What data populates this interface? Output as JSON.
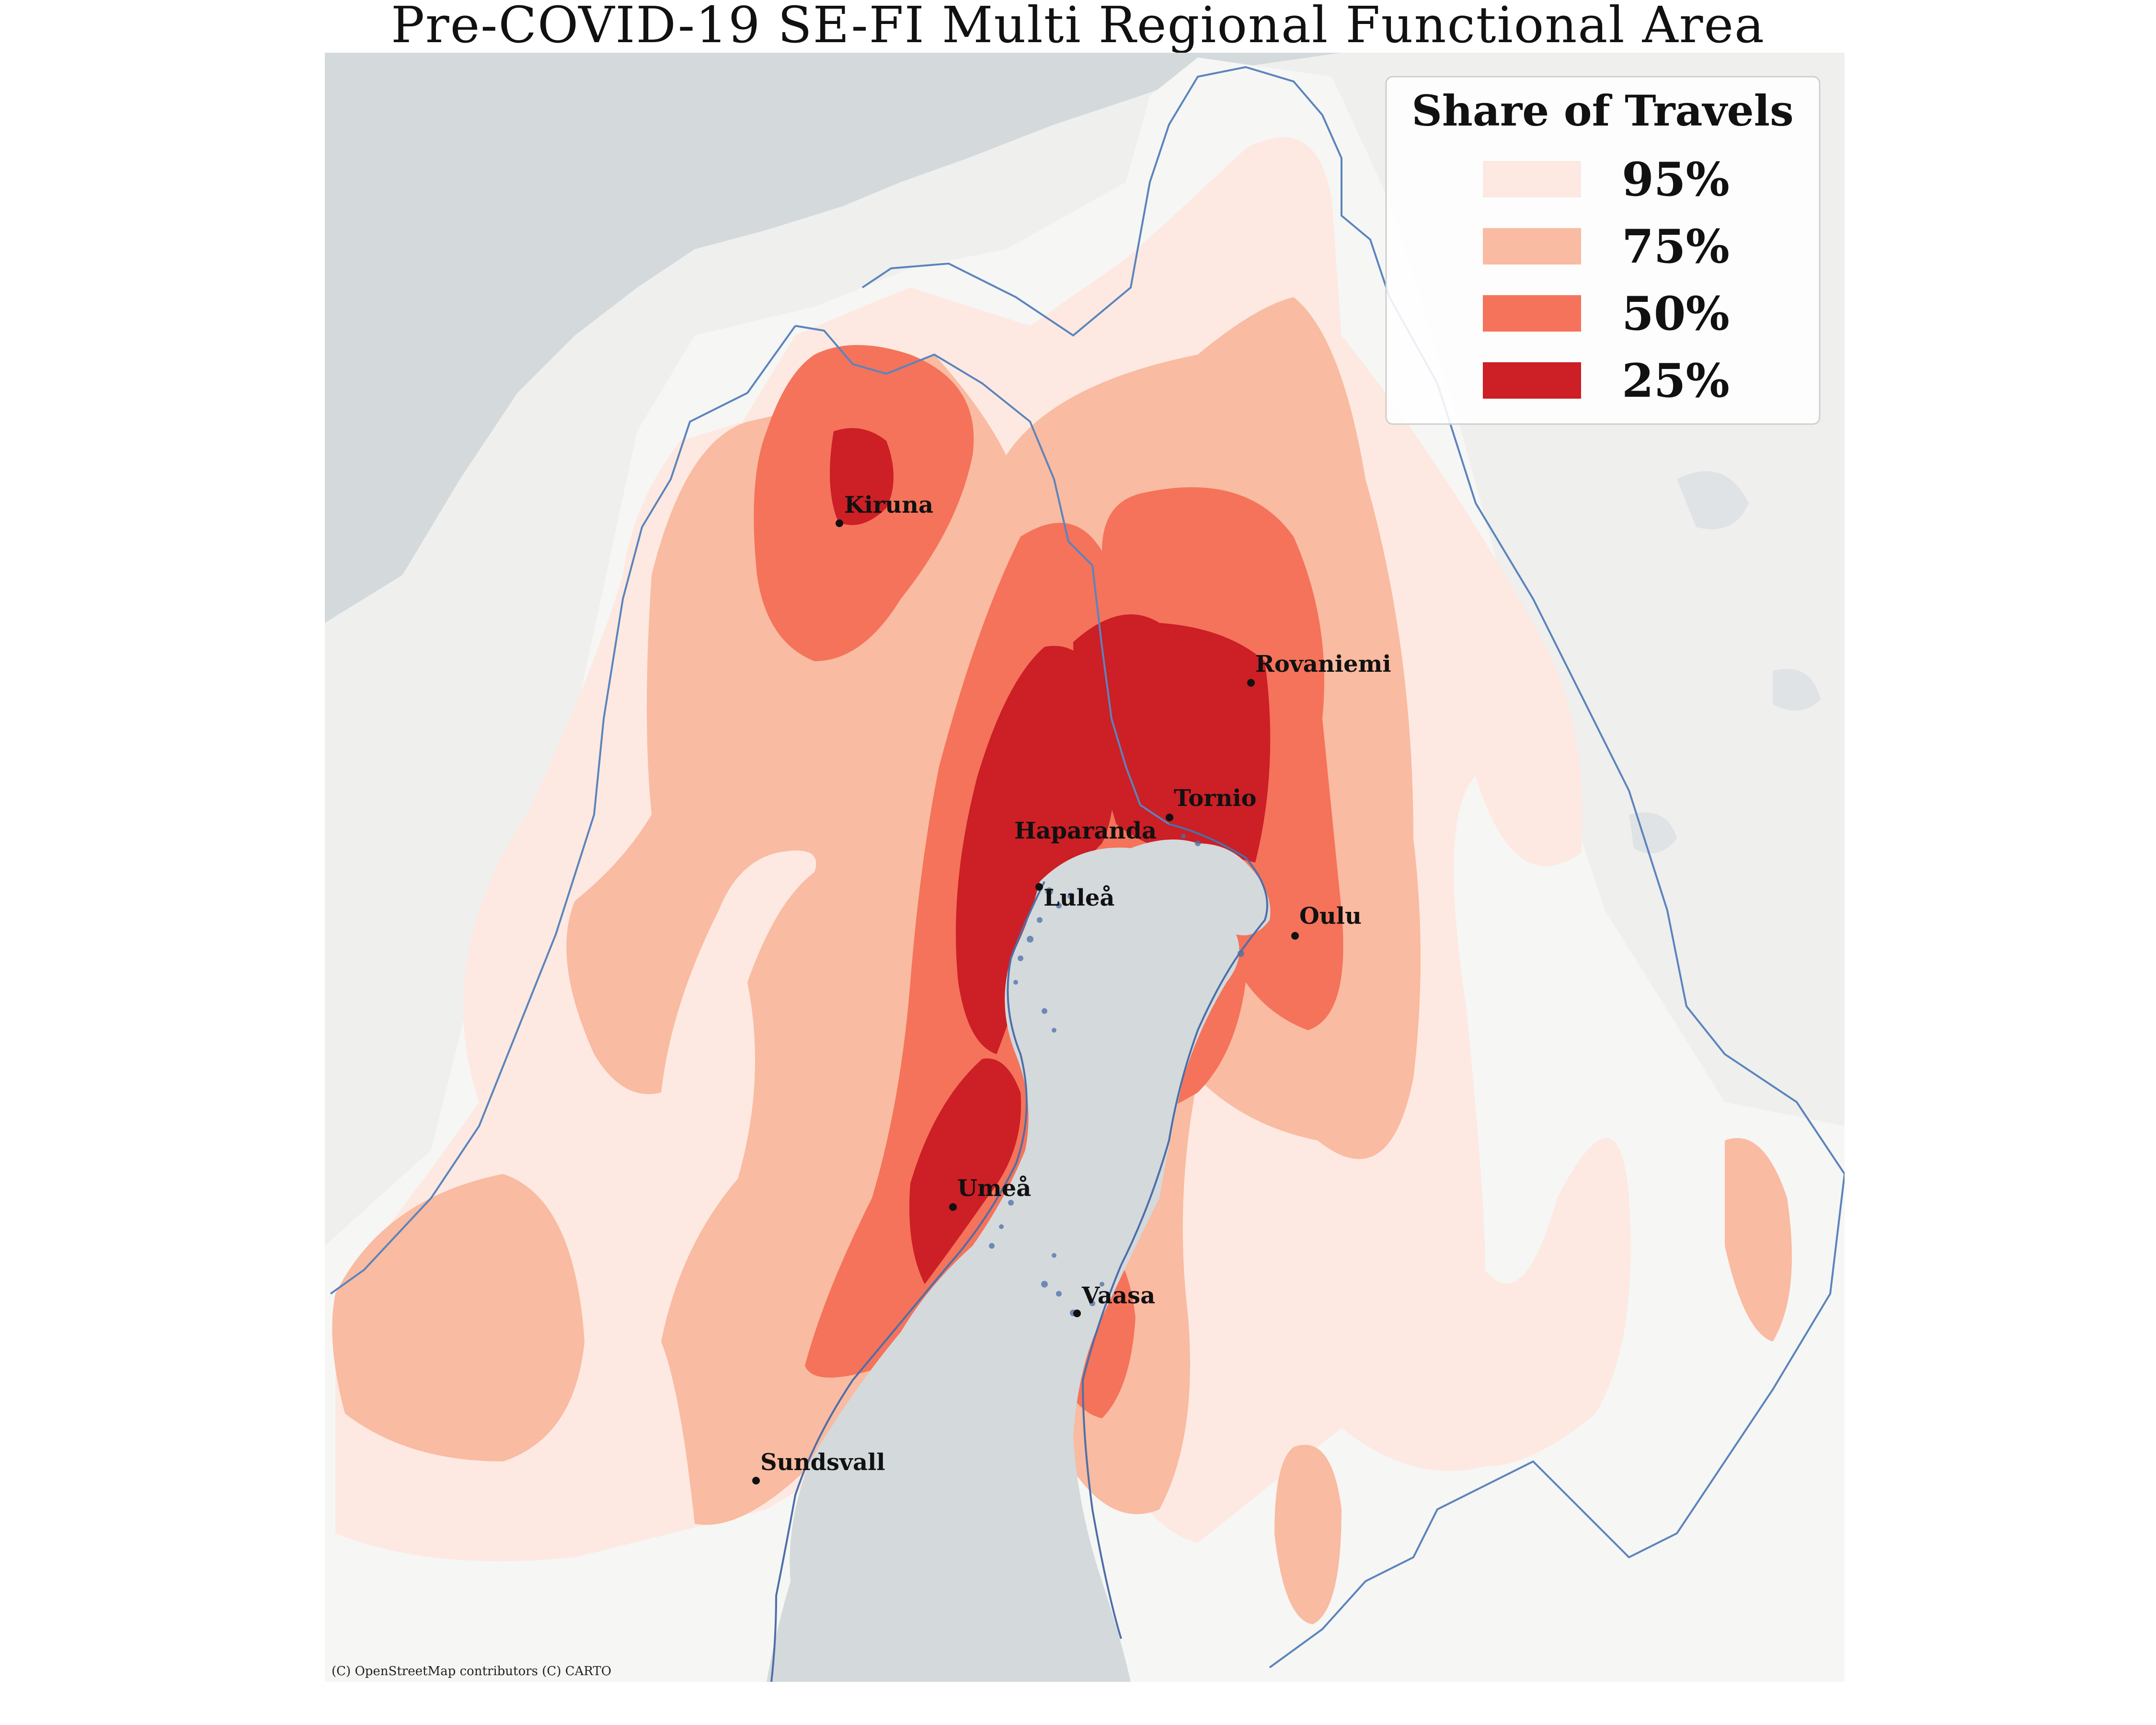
{
  "title": "Pre-COVID-19 SE-FI Multi Regional Functional Area",
  "legend": {
    "title": "Share of Travels",
    "items": [
      {
        "label": "95%",
        "color": "#fde9e1"
      },
      {
        "label": "75%",
        "color": "#f9bba1"
      },
      {
        "label": "50%",
        "color": "#f4735a"
      },
      {
        "label": "25%",
        "color": "#cc1f26"
      }
    ]
  },
  "cities": [
    {
      "name": "Kiruna"
    },
    {
      "name": "Rovaniemi"
    },
    {
      "name": "Tornio"
    },
    {
      "name": "Haparanda"
    },
    {
      "name": "Luleå"
    },
    {
      "name": "Oulu"
    },
    {
      "name": "Umeå"
    },
    {
      "name": "Vaasa"
    },
    {
      "name": "Sundsvall"
    }
  ],
  "attribution": "(C) OpenStreetMap contributors (C) CARTO",
  "colors": {
    "sea": "#d4d9dc",
    "land": "#f2f2f1",
    "border": "#5b84bd"
  }
}
